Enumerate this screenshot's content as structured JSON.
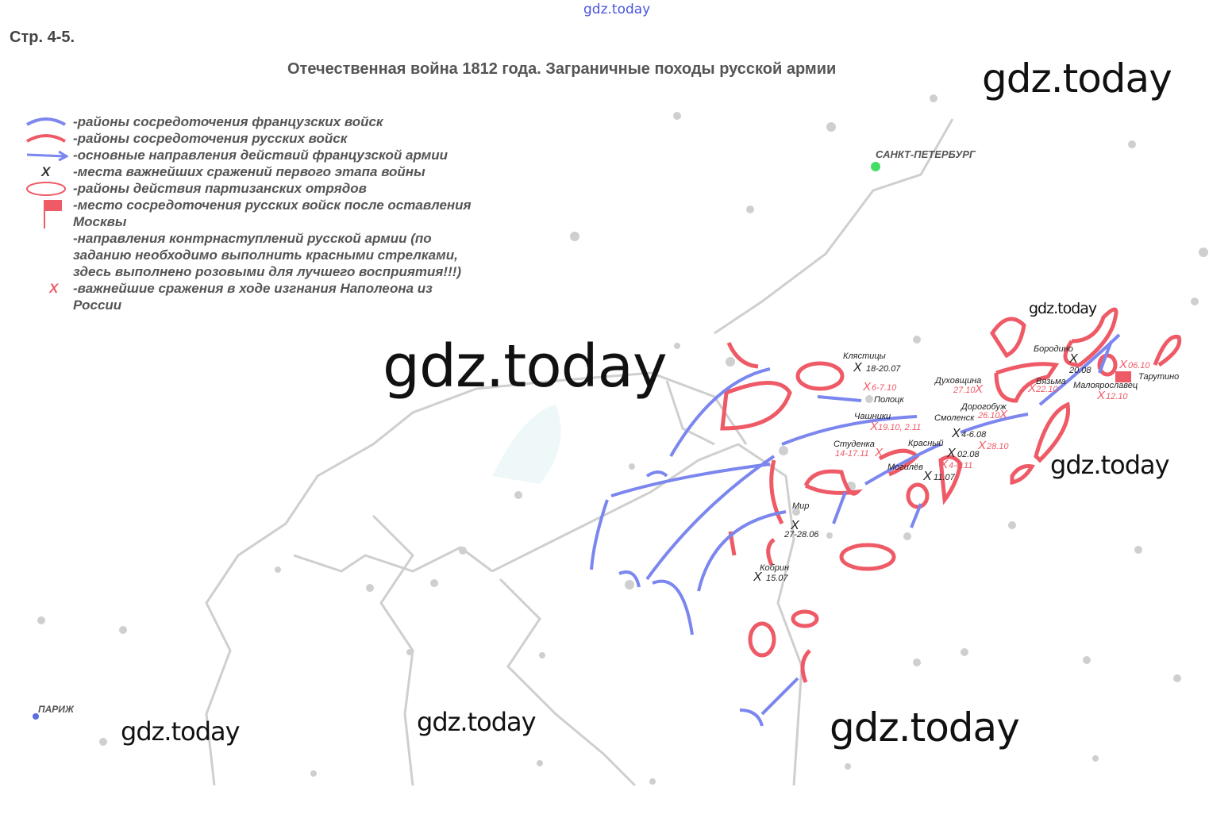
{
  "header": {
    "top_watermark": "gdz.today",
    "page_label": "Стр. 4-5.",
    "title": "Отечественная война 1812 года. Заграничные походы русской армии"
  },
  "legend": [
    {
      "icon": "french-concentration-icon",
      "text": "-районы сосредоточения французских войск"
    },
    {
      "icon": "russian-concentration-icon",
      "text": "-районы сосредоточения русских войск"
    },
    {
      "icon": "french-direction-arrow-icon",
      "text": "-основные направления действий французской армии"
    },
    {
      "icon": "battle-x-icon",
      "text": "-места важнейших сражений первого этапа войны"
    },
    {
      "icon": "partisan-area-icon",
      "text": "-районы действия партизанских отрядов"
    },
    {
      "icon": "flag-icon",
      "text": "-место сосредоточения русских войск после оставления Москвы"
    },
    {
      "icon": "",
      "text": "-направления контрнаступлений русской армии (по заданию необходимо выполнить красными стрелками, здесь выполнено розовыми для лучшего восприятия!!!)"
    },
    {
      "icon": "red-battle-x-icon",
      "text": "-важнейшие сражения в ходе изгнания Наполеона из России"
    }
  ],
  "legend_symbols": {
    "battle_x": "X"
  },
  "colors": {
    "french": "#7b86ee",
    "russian": "#ee5a66",
    "city": "#c8c8c8",
    "saint_petersburg": "#44dd66",
    "paris": "#5b6be0"
  },
  "cities": {
    "saint_petersburg": "САНКТ-ПЕТЕРБУРГ",
    "paris": "ПАРИЖ",
    "polotsk": "Полоцк",
    "mir": "Мир",
    "mogilev": "Могилёв",
    "smolensk": "Смоленск",
    "dorogobuzh": "Дорогобуж",
    "dukhovshchina": "Духовщина",
    "vyazma": "Вязьма",
    "borodino": "Бородино",
    "tarutino": "Тарутино",
    "maloyaroslavets": "Малоярославец",
    "chashniki": "Чашники",
    "studenka": "Студенка",
    "krasny": "Красный",
    "klyastitsy": "Клястицы",
    "kobrin": "Кобрин"
  },
  "battles_first_stage": {
    "klyastitsy": "18-20.07",
    "mir": "27-28.06",
    "kobrin": "15.07",
    "mogilev": "11.07",
    "smolensk": "4-6.08",
    "krasny": "02.08",
    "borodino": "20.08"
  },
  "battles_expulsion": {
    "polotsk": "6-7.10",
    "chashniki": "19.10, 2.11",
    "studenka": "14-17.11",
    "krasny": "4-6.11",
    "dukhovshchina": "27.10",
    "dorogobuzh": "26.10",
    "smolensk": "28.10",
    "vyazma": "22.10",
    "maloyaroslavets": "12.10",
    "tarutino": "06.10"
  },
  "watermarks": [
    "gdz.today",
    "gdz.today",
    "gdz.today",
    "gdz.today",
    "gdz.today",
    "gdz.today",
    "gdz.today"
  ]
}
